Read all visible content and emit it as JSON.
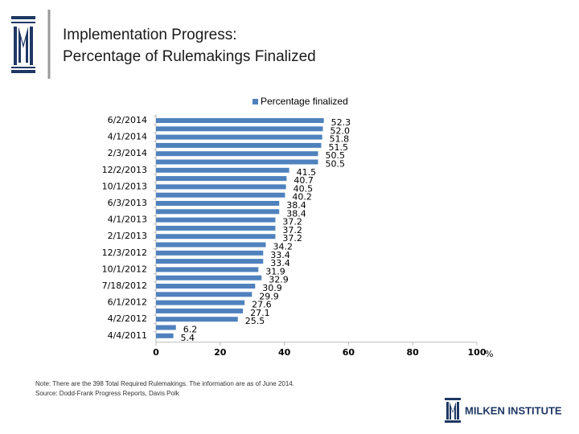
{
  "header": {
    "title_line1": "Implementation Progress:",
    "title_line2": "Percentage of Rulemakings Finalized"
  },
  "chart_data": {
    "type": "bar",
    "orientation": "horizontal",
    "categories": [
      "6/2/2014",
      null,
      "4/1/2014",
      null,
      "2/3/2014",
      null,
      "12/2/2013",
      null,
      "10/1/2013",
      null,
      "6/3/2013",
      null,
      "4/1/2013",
      null,
      "2/1/2013",
      null,
      "12/3/2012",
      null,
      "10/1/2012",
      null,
      "7/18/2012",
      null,
      "6/1/2012",
      null,
      "4/2/2012",
      null,
      "4/4/2011"
    ],
    "series": [
      {
        "name": "Percentage finalized",
        "color": "#4f81bd",
        "values": [
          52.3,
          52.0,
          51.8,
          51.5,
          50.5,
          50.5,
          41.5,
          40.7,
          40.5,
          40.2,
          38.4,
          38.4,
          37.2,
          37.2,
          37.2,
          34.2,
          33.4,
          33.4,
          31.9,
          32.9,
          30.9,
          29.9,
          27.6,
          27.1,
          25.5,
          6.2,
          5.4
        ],
        "value_labels": [
          "52.3",
          "52.0",
          "51.8",
          "51.5",
          "50.5",
          "50.5",
          "41.5",
          "40.7",
          "40.5",
          "40.2",
          "38.4",
          "38.4",
          "37.2",
          "37.2",
          "37.2",
          "34.2",
          "33.4",
          "33.4",
          "31.9",
          "32.9",
          "30.9",
          "29.9",
          "27.6",
          "27.1",
          "25.5",
          "6.2",
          "5.4"
        ]
      }
    ],
    "xlim": [
      0,
      100
    ],
    "xticks": [
      0,
      20,
      40,
      60,
      80,
      100
    ],
    "x_unit": "%",
    "legend": "top"
  },
  "footer": {
    "note": "Note: There are the 398 Total Required Rulemakings. The information are as of June 2014.",
    "source": "Source: Dodd-Frank Progress Reports, Davis Polk",
    "logo": "MILKEN INSTITUTE"
  }
}
